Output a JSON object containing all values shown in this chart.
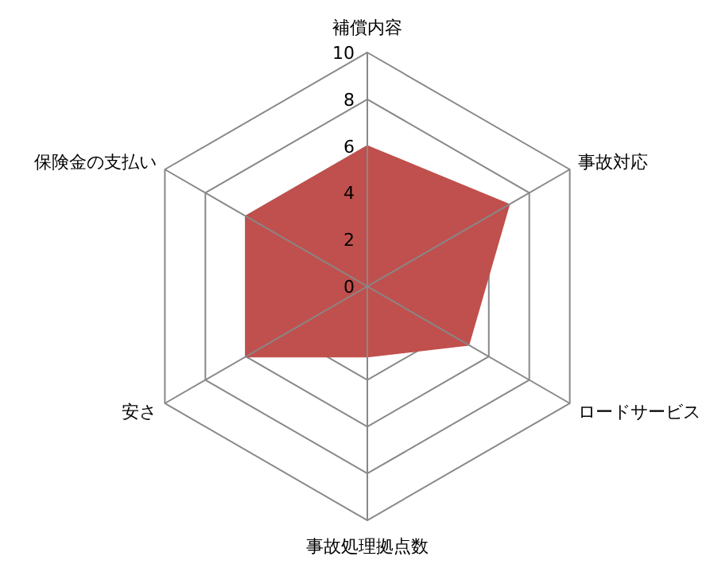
{
  "chart_data": {
    "type": "radar",
    "categories": [
      "補償内容",
      "事故対応",
      "ロードサービス",
      "事故処理拠点数",
      "安さ",
      "保険金の支払い"
    ],
    "series": [
      {
        "color": "#c0504d",
        "values": [
          6,
          7,
          5,
          3,
          6,
          6
        ]
      }
    ],
    "ylim": [
      0,
      10
    ],
    "yticks": [
      0,
      2,
      4,
      6,
      8,
      10
    ],
    "grid": true
  }
}
